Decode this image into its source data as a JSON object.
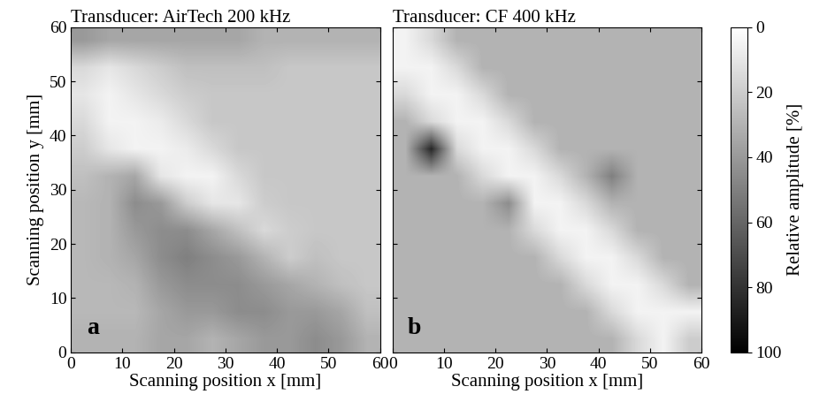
{
  "chart_data": [
    {
      "type": "heatmap",
      "title": "Transducer: AirTech 200 kHz",
      "annotation": "a",
      "xlabel": "Scanning position x [mm]",
      "ylabel": "Scanning position y [mm]",
      "xlim": [
        0,
        60
      ],
      "ylim": [
        0,
        60
      ],
      "xticks": [
        0,
        10,
        20,
        30,
        40,
        50,
        60
      ],
      "yticks": [
        0,
        10,
        20,
        30,
        40,
        50,
        60
      ],
      "cells": [
        [
          30,
          30,
          30,
          35,
          35,
          30,
          35,
          40,
          40,
          45,
          40,
          30
        ],
        [
          28,
          28,
          28,
          35,
          40,
          40,
          45,
          45,
          40,
          40,
          35,
          25
        ],
        [
          28,
          28,
          30,
          40,
          45,
          45,
          45,
          40,
          35,
          30,
          25,
          22
        ],
        [
          28,
          30,
          35,
          45,
          50,
          45,
          40,
          30,
          20,
          25,
          22,
          22
        ],
        [
          28,
          30,
          40,
          45,
          45,
          35,
          25,
          15,
          20,
          22,
          22,
          22
        ],
        [
          28,
          30,
          45,
          40,
          20,
          10,
          10,
          20,
          22,
          22,
          22,
          22
        ],
        [
          25,
          30,
          35,
          10,
          5,
          5,
          15,
          22,
          22,
          22,
          22,
          22
        ],
        [
          20,
          10,
          5,
          5,
          8,
          15,
          22,
          22,
          22,
          22,
          22,
          22
        ],
        [
          15,
          5,
          5,
          8,
          15,
          22,
          22,
          22,
          22,
          22,
          22,
          22
        ],
        [
          10,
          5,
          10,
          15,
          20,
          22,
          22,
          22,
          22,
          22,
          22,
          22
        ],
        [
          15,
          10,
          15,
          20,
          25,
          25,
          25,
          25,
          22,
          22,
          22,
          22
        ],
        [
          40,
          35,
          35,
          35,
          35,
          35,
          35,
          30,
          30,
          30,
          30,
          30
        ]
      ]
    },
    {
      "type": "heatmap",
      "title": "Transducer: CF 400 kHz",
      "annotation": "b",
      "xlabel": "Scanning position x [mm]",
      "tick_labels": "x",
      "xlim": [
        0,
        60
      ],
      "ylim": [
        0,
        60
      ],
      "xticks": [
        0,
        10,
        20,
        30,
        40,
        50,
        60
      ],
      "yticks": [
        0,
        10,
        20,
        30,
        40,
        50,
        60
      ],
      "cells": [
        [
          30,
          30,
          30,
          30,
          30,
          30,
          30,
          30,
          30,
          15,
          5,
          20
        ],
        [
          30,
          30,
          30,
          30,
          30,
          30,
          30,
          30,
          15,
          5,
          5,
          5
        ],
        [
          30,
          30,
          30,
          30,
          30,
          30,
          30,
          15,
          5,
          5,
          15,
          30
        ],
        [
          30,
          30,
          30,
          30,
          30,
          30,
          15,
          5,
          5,
          15,
          30,
          30
        ],
        [
          30,
          30,
          30,
          30,
          30,
          15,
          5,
          5,
          15,
          30,
          30,
          30
        ],
        [
          30,
          30,
          30,
          30,
          45,
          5,
          5,
          15,
          30,
          30,
          30,
          30
        ],
        [
          30,
          30,
          30,
          15,
          5,
          5,
          15,
          30,
          50,
          30,
          30,
          30
        ],
        [
          30,
          85,
          15,
          5,
          5,
          15,
          30,
          30,
          30,
          30,
          30,
          30
        ],
        [
          30,
          15,
          5,
          5,
          15,
          30,
          30,
          30,
          30,
          30,
          30,
          30
        ],
        [
          15,
          5,
          5,
          15,
          30,
          30,
          30,
          30,
          30,
          30,
          30,
          30
        ],
        [
          5,
          5,
          15,
          30,
          30,
          30,
          30,
          30,
          30,
          30,
          30,
          30
        ],
        [
          5,
          15,
          30,
          30,
          30,
          30,
          30,
          30,
          30,
          30,
          30,
          30
        ]
      ],
      "colorbar": {
        "label": "Relative amplitude [%]",
        "range": [
          0,
          100
        ],
        "ticks": [
          0,
          20,
          40,
          60,
          80,
          100
        ]
      }
    }
  ]
}
